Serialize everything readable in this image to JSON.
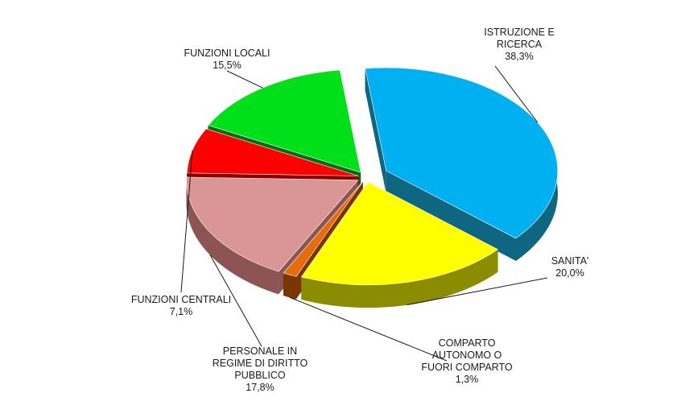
{
  "chart_data": {
    "type": "pie",
    "style": "3d-exploded",
    "title": "",
    "legend": "none",
    "slices": [
      {
        "label_lines": [
          "ISTRUZIONE E",
          "RICERCA"
        ],
        "value_text": "38,3%",
        "value": 38.3,
        "color": "#00B0F0",
        "side_color": "#0E6680"
      },
      {
        "label_lines": [
          "SANITA'"
        ],
        "value_text": "20,0%",
        "value": 20.0,
        "color": "#FFFF00",
        "side_color": "#8C8C00"
      },
      {
        "label_lines": [
          "COMPARTO",
          "AUTONOMO O",
          "FUORI COMPARTO"
        ],
        "value_text": "1,3%",
        "value": 1.3,
        "color": "#E46C0A",
        "side_color": "#7A3606"
      },
      {
        "label_lines": [
          "PERSONALE IN",
          "REGIME DI DIRITTO",
          "PUBBLICO"
        ],
        "value_text": "17,8%",
        "value": 17.8,
        "color": "#D99694",
        "side_color": "#8C5452"
      },
      {
        "label_lines": [
          "FUNZIONI CENTRALI"
        ],
        "value_text": "7,1%",
        "value": 7.1,
        "color": "#FF0000",
        "side_color": "#8B0000"
      },
      {
        "label_lines": [
          "FUNZIONI LOCALI"
        ],
        "value_text": "15,5%",
        "value": 15.5,
        "color": "#00E01A",
        "side_color": "#0A6B12"
      }
    ]
  }
}
